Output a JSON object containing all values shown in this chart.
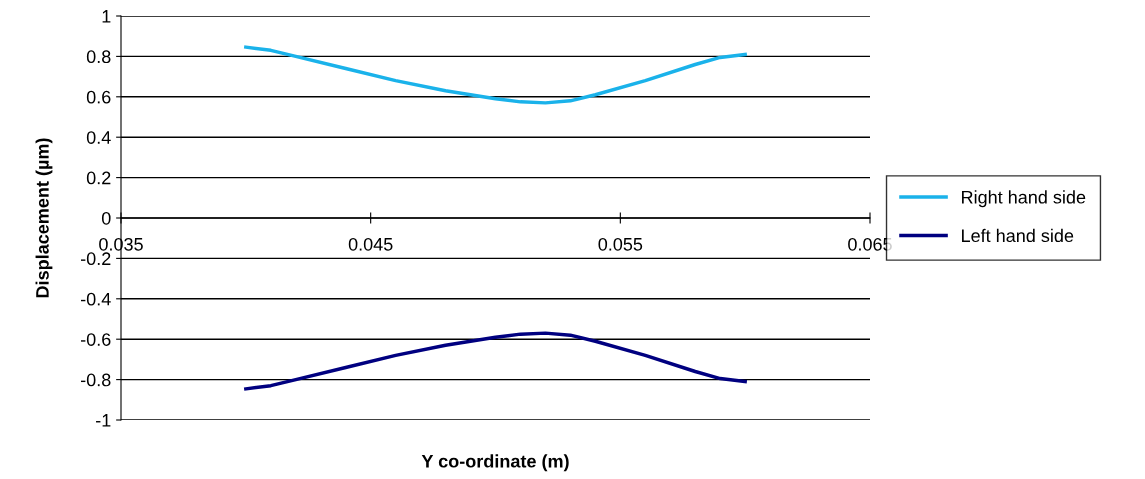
{
  "chart_data": {
    "type": "line",
    "xlabel": "Y co-ordinate (m)",
    "ylabel": "Displacement (µm)",
    "x": [
      0.04,
      0.041,
      0.042,
      0.044,
      0.046,
      0.048,
      0.05,
      0.051,
      0.052,
      0.053,
      0.054,
      0.056,
      0.058,
      0.059,
      0.06
    ],
    "series": [
      {
        "name": "Right hand side",
        "color": "#1ab2ea",
        "values": [
          0.846,
          0.83,
          0.8,
          0.74,
          0.68,
          0.63,
          0.59,
          0.575,
          0.57,
          0.58,
          0.61,
          0.68,
          0.76,
          0.795,
          0.81
        ]
      },
      {
        "name": "Left hand side",
        "color": "#000080",
        "values": [
          -0.846,
          -0.83,
          -0.8,
          -0.74,
          -0.68,
          -0.63,
          -0.59,
          -0.575,
          -0.57,
          -0.58,
          -0.61,
          -0.68,
          -0.76,
          -0.795,
          -0.81
        ]
      }
    ],
    "xlim": [
      0.035,
      0.065
    ],
    "xticks": [
      0.035,
      0.045,
      0.055,
      0.065
    ],
    "ylim": [
      -1,
      1
    ],
    "yticks": [
      -1,
      -0.8,
      -0.6,
      -0.4,
      -0.2,
      0,
      0.2,
      0.4,
      0.6,
      0.8,
      1
    ],
    "grid": "y",
    "legend": "right",
    "marker": "none",
    "line_style": "solid"
  }
}
